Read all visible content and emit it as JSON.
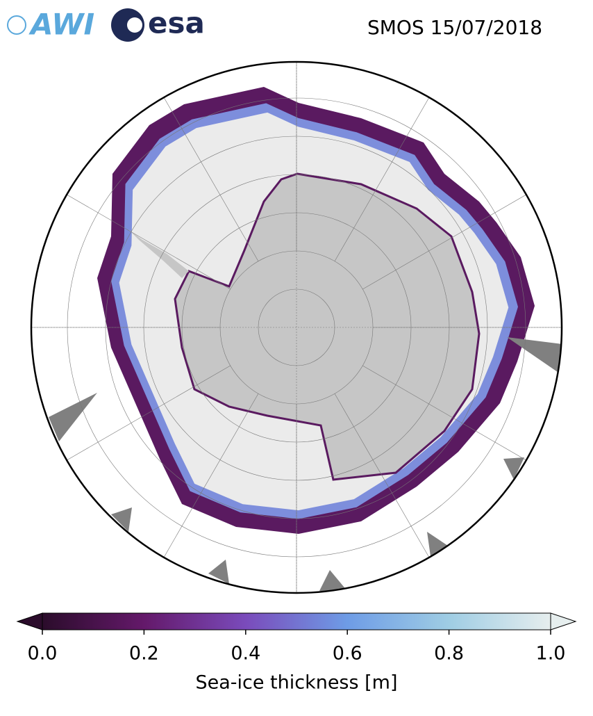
{
  "logos": [
    "AWI",
    "esa"
  ],
  "title": "SMOS 15/07/2018",
  "colorbar": {
    "label": "Sea-ice thickness [m]",
    "lim": [
      0,
      1
    ],
    "ticks": [
      {
        "value": 0,
        "label": "0.0"
      },
      {
        "value": 0.2,
        "label": "0.2"
      },
      {
        "value": 0.4,
        "label": "0.4"
      },
      {
        "value": 0.6,
        "label": "0.6"
      },
      {
        "value": 0.8,
        "label": "0.8"
      },
      {
        "value": 1,
        "label": "1.0"
      }
    ]
  }
}
